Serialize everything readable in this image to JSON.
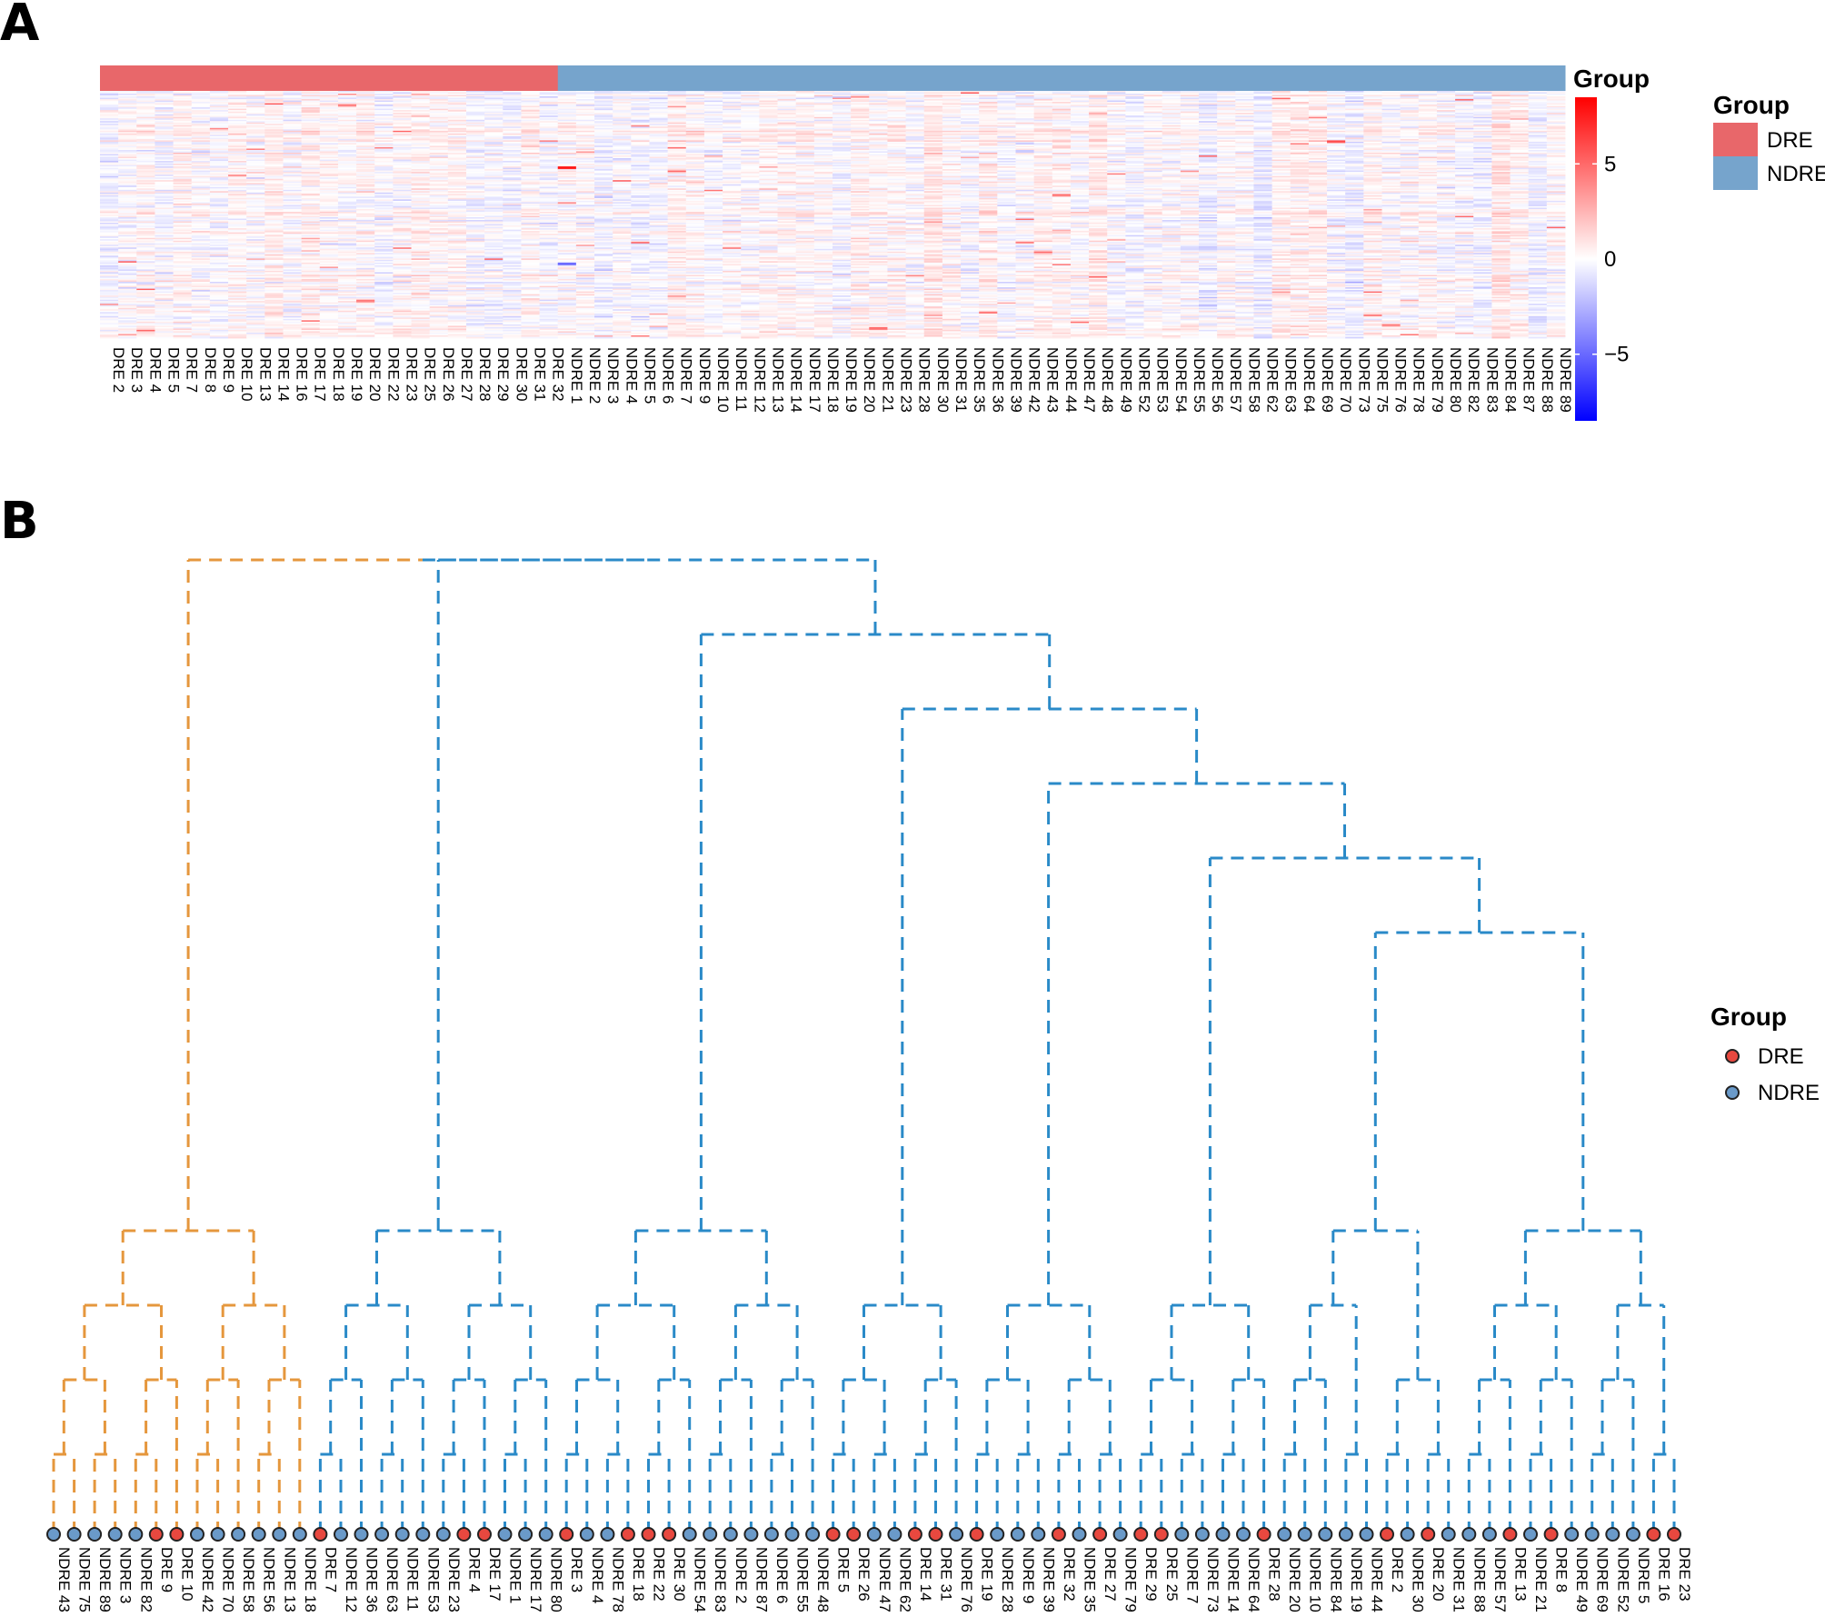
{
  "panels": {
    "a": "A",
    "b": "B"
  },
  "colors": {
    "dre": "#e8676a",
    "ndre": "#76a4cc",
    "dre_point": "#e8483f",
    "ndre_point": "#6a9ac9",
    "tree_dre": "#e5973d",
    "tree_ndre": "#2a8ac8",
    "heat_low": "#0000ff",
    "heat_mid": "#ffffff",
    "heat_high": "#ff0000"
  },
  "chart_data": [
    {
      "type": "heatmap",
      "annotation_label": "Group",
      "annotation_groups": [
        {
          "name": "DRE",
          "count": 25
        },
        {
          "name": "NDRE",
          "count": 55
        }
      ],
      "columns": [
        "DRE 2",
        "DRE 3",
        "DRE 4",
        "DRE 5",
        "DRE 7",
        "DRE 8",
        "DRE 9",
        "DRE 10",
        "DRE 13",
        "DRE 14",
        "DRE 16",
        "DRE 17",
        "DRE 18",
        "DRE 19",
        "DRE 20",
        "DRE 22",
        "DRE 23",
        "DRE 25",
        "DRE 26",
        "DRE 27",
        "DRE 28",
        "DRE 29",
        "DRE 30",
        "DRE 31",
        "DRE 32",
        "NDRE 1",
        "NDRE 2",
        "NDRE 3",
        "NDRE 4",
        "NDRE 5",
        "NDRE 6",
        "NDRE 7",
        "NDRE 9",
        "NDRE 10",
        "NDRE 11",
        "NDRE 12",
        "NDRE 13",
        "NDRE 14",
        "NDRE 17",
        "NDRE 18",
        "NDRE 19",
        "NDRE 20",
        "NDRE 21",
        "NDRE 23",
        "NDRE 28",
        "NDRE 30",
        "NDRE 31",
        "NDRE 35",
        "NDRE 36",
        "NDRE 39",
        "NDRE 42",
        "NDRE 43",
        "NDRE 44",
        "NDRE 47",
        "NDRE 48",
        "NDRE 49",
        "NDRE 52",
        "NDRE 53",
        "NDRE 54",
        "NDRE 55",
        "NDRE 56",
        "NDRE 57",
        "NDRE 58",
        "NDRE 62",
        "NDRE 63",
        "NDRE 64",
        "NDRE 69",
        "NDRE 70",
        "NDRE 73",
        "NDRE 75",
        "NDRE 76",
        "NDRE 78",
        "NDRE 79",
        "NDRE 80",
        "NDRE 82",
        "NDRE 83",
        "NDRE 84",
        "NDRE 87",
        "NDRE 88",
        "NDRE 89"
      ],
      "color_scale": {
        "min": -8.5,
        "max": 8.5,
        "ticks": [
          -5,
          0,
          5
        ],
        "tick_labels": [
          "−5",
          "0",
          "5"
        ]
      },
      "legend_title": "Group",
      "legend_items": [
        "DRE",
        "NDRE"
      ],
      "approx_rows": 180,
      "notable_cells": [
        {
          "column": "NDRE 1",
          "row_fraction": 0.31,
          "value": 8
        },
        {
          "column": "NDRE 1",
          "row_fraction": 0.7,
          "value": -5
        },
        {
          "column": "NDRE 70",
          "row_fraction": 0.2,
          "value": 6
        },
        {
          "column": "NDRE 44",
          "row_fraction": 0.42,
          "value": 4.5
        },
        {
          "column": "DRE 20",
          "row_fraction": 0.85,
          "value": 4.5
        },
        {
          "column": "NDRE 21",
          "row_fraction": 0.96,
          "value": 5
        }
      ]
    },
    {
      "type": "dendrogram",
      "legend_title": "Group",
      "legend_items": [
        "DRE",
        "NDRE"
      ],
      "leaves": [
        {
          "label": "NDRE 43",
          "group": "NDRE"
        },
        {
          "label": "NDRE 75",
          "group": "NDRE"
        },
        {
          "label": "NDRE 89",
          "group": "NDRE"
        },
        {
          "label": "NDRE 3",
          "group": "NDRE"
        },
        {
          "label": "NDRE 82",
          "group": "NDRE"
        },
        {
          "label": "DRE 9",
          "group": "DRE"
        },
        {
          "label": "DRE 10",
          "group": "DRE"
        },
        {
          "label": "NDRE 42",
          "group": "NDRE"
        },
        {
          "label": "NDRE 70",
          "group": "NDRE"
        },
        {
          "label": "NDRE 58",
          "group": "NDRE"
        },
        {
          "label": "NDRE 56",
          "group": "NDRE"
        },
        {
          "label": "NDRE 13",
          "group": "NDRE"
        },
        {
          "label": "NDRE 18",
          "group": "NDRE"
        },
        {
          "label": "DRE 7",
          "group": "DRE"
        },
        {
          "label": "NDRE 12",
          "group": "NDRE"
        },
        {
          "label": "NDRE 36",
          "group": "NDRE"
        },
        {
          "label": "NDRE 63",
          "group": "NDRE"
        },
        {
          "label": "NDRE 11",
          "group": "NDRE"
        },
        {
          "label": "NDRE 53",
          "group": "NDRE"
        },
        {
          "label": "NDRE 23",
          "group": "NDRE"
        },
        {
          "label": "DRE 4",
          "group": "DRE"
        },
        {
          "label": "DRE 17",
          "group": "DRE"
        },
        {
          "label": "NDRE 1",
          "group": "NDRE"
        },
        {
          "label": "NDRE 17",
          "group": "NDRE"
        },
        {
          "label": "NDRE 80",
          "group": "NDRE"
        },
        {
          "label": "DRE 3",
          "group": "DRE"
        },
        {
          "label": "NDRE 4",
          "group": "NDRE"
        },
        {
          "label": "NDRE 78",
          "group": "NDRE"
        },
        {
          "label": "DRE 18",
          "group": "DRE"
        },
        {
          "label": "DRE 22",
          "group": "DRE"
        },
        {
          "label": "DRE 30",
          "group": "DRE"
        },
        {
          "label": "NDRE 54",
          "group": "NDRE"
        },
        {
          "label": "NDRE 83",
          "group": "NDRE"
        },
        {
          "label": "NDRE 2",
          "group": "NDRE"
        },
        {
          "label": "NDRE 87",
          "group": "NDRE"
        },
        {
          "label": "NDRE 6",
          "group": "NDRE"
        },
        {
          "label": "NDRE 55",
          "group": "NDRE"
        },
        {
          "label": "NDRE 48",
          "group": "NDRE"
        },
        {
          "label": "DRE 5",
          "group": "DRE"
        },
        {
          "label": "DRE 26",
          "group": "DRE"
        },
        {
          "label": "NDRE 47",
          "group": "NDRE"
        },
        {
          "label": "NDRE 62",
          "group": "NDRE"
        },
        {
          "label": "DRE 14",
          "group": "DRE"
        },
        {
          "label": "DRE 31",
          "group": "DRE"
        },
        {
          "label": "NDRE 76",
          "group": "NDRE"
        },
        {
          "label": "DRE 19",
          "group": "DRE"
        },
        {
          "label": "NDRE 28",
          "group": "NDRE"
        },
        {
          "label": "NDRE 9",
          "group": "NDRE"
        },
        {
          "label": "NDRE 39",
          "group": "NDRE"
        },
        {
          "label": "DRE 32",
          "group": "DRE"
        },
        {
          "label": "NDRE 35",
          "group": "NDRE"
        },
        {
          "label": "DRE 27",
          "group": "DRE"
        },
        {
          "label": "NDRE 79",
          "group": "NDRE"
        },
        {
          "label": "DRE 29",
          "group": "DRE"
        },
        {
          "label": "DRE 25",
          "group": "DRE"
        },
        {
          "label": "NDRE 7",
          "group": "NDRE"
        },
        {
          "label": "NDRE 73",
          "group": "NDRE"
        },
        {
          "label": "NDRE 14",
          "group": "NDRE"
        },
        {
          "label": "NDRE 64",
          "group": "NDRE"
        },
        {
          "label": "DRE 28",
          "group": "DRE"
        },
        {
          "label": "NDRE 20",
          "group": "NDRE"
        },
        {
          "label": "NDRE 10",
          "group": "NDRE"
        },
        {
          "label": "NDRE 84",
          "group": "NDRE"
        },
        {
          "label": "NDRE 19",
          "group": "NDRE"
        },
        {
          "label": "NDRE 44",
          "group": "NDRE"
        },
        {
          "label": "DRE 2",
          "group": "DRE"
        },
        {
          "label": "NDRE 30",
          "group": "NDRE"
        },
        {
          "label": "DRE 20",
          "group": "DRE"
        },
        {
          "label": "NDRE 31",
          "group": "NDRE"
        },
        {
          "label": "NDRE 88",
          "group": "NDRE"
        },
        {
          "label": "NDRE 57",
          "group": "NDRE"
        },
        {
          "label": "DRE 13",
          "group": "DRE"
        },
        {
          "label": "NDRE 21",
          "group": "NDRE"
        },
        {
          "label": "DRE 8",
          "group": "DRE"
        },
        {
          "label": "NDRE 49",
          "group": "NDRE"
        },
        {
          "label": "NDRE 69",
          "group": "NDRE"
        },
        {
          "label": "NDRE 52",
          "group": "NDRE"
        },
        {
          "label": "NDRE 5",
          "group": "NDRE"
        },
        {
          "label": "DRE 16",
          "group": "DRE"
        },
        {
          "label": "DRE 23",
          "group": "DRE"
        }
      ],
      "merges": [
        [
          0,
          1,
          1.0
        ],
        [
          2,
          3,
          1.0
        ],
        [
          4,
          5,
          1.0
        ],
        [
          6,
          7,
          1.0
        ],
        [
          10,
          11,
          1.0
        ],
        [
          13,
          14,
          1.0
        ],
        [
          15,
          16,
          1.0
        ],
        [
          17,
          18,
          1.0
        ],
        [
          20,
          21,
          1.0
        ],
        [
          23,
          24,
          1.0
        ],
        [
          26,
          27,
          1.0
        ],
        [
          28,
          29,
          1.0
        ],
        [
          31,
          32,
          1.0
        ],
        [
          33,
          34,
          1.0
        ],
        [
          35,
          36,
          1.0
        ],
        [
          38,
          39,
          1.0
        ],
        [
          41,
          42,
          1.0
        ],
        [
          43,
          44,
          1.0
        ],
        [
          45,
          46,
          1.0
        ],
        [
          47,
          48,
          1.0
        ],
        [
          49,
          50,
          1.0
        ],
        [
          51,
          52,
          1.0
        ],
        [
          54,
          55,
          1.0
        ],
        [
          56,
          57,
          1.0
        ],
        [
          58,
          59,
          1.0
        ],
        [
          60,
          61,
          1.0
        ],
        [
          62,
          63,
          1.0
        ],
        [
          64,
          65,
          1.0
        ],
        [
          66,
          67,
          1.0
        ],
        [
          68,
          69,
          1.0
        ],
        [
          71,
          72,
          1.0
        ],
        [
          73,
          74,
          1.0
        ],
        [
          75,
          76,
          1.0
        ],
        [
          78,
          79,
          1.0
        ],
        [
          80,
          "x",
          2.0
        ],
        [
          8,
          9,
          1.0
        ],
        [
          "NDRE 58+NDRE 56",
          "x",
          2.0
        ],
        [
          83,
          "x",
          2.0
        ],
        [
          82,
          85,
          2.0
        ],
        [
          86,
          87,
          2.0
        ],
        [
          88,
          89,
          2.0
        ],
        [
          12,
          91,
          2.0
        ],
        [
          92,
          22,
          2.0
        ],
        [
          25,
          93,
          2.0
        ],
        [
          30,
          94,
          2.0
        ],
        [
          95,
          96,
          2.0
        ],
        [
          97,
          98,
          2.0
        ],
        [
          37,
          99,
          2.0
        ],
        [
          100,
          101,
          2.0
        ],
        [
          40,
          102,
          2.0
        ],
        [
          103,
          104,
          2.0
        ],
        [
          53,
          105,
          2.0
        ],
        [
          106,
          107,
          2.0
        ],
        [
          108,
          109,
          2.0
        ],
        [
          110,
          111,
          2.0
        ],
        [
          112,
          113,
          2.0
        ],
        [
          70,
          114,
          2.0
        ],
        [
          115,
          116,
          2.0
        ],
        [
          77,
          117,
          2.0
        ],
        [
          118,
          119,
          2.0
        ]
      ]
    }
  ]
}
